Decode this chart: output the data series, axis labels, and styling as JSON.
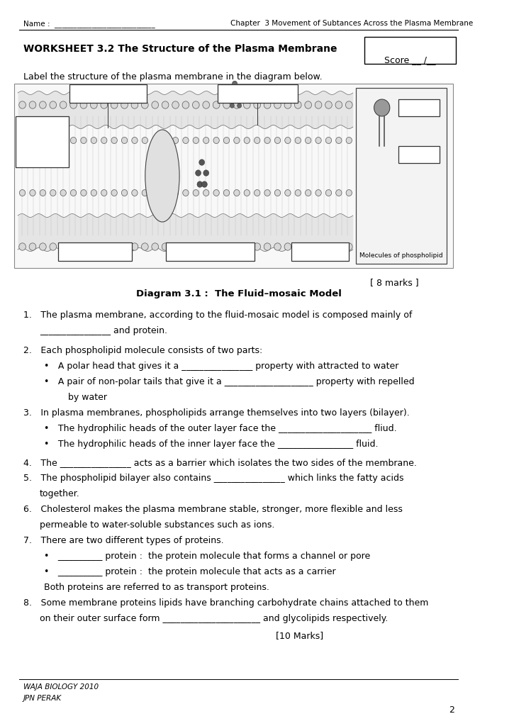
{
  "bg_color": "#ffffff",
  "header_name": "Name :  ___________________________",
  "header_chapter": "Chapter  3 Movement of Subtances Across the Plasma Membrane",
  "worksheet_title": "WORKSHEET 3.2 The Structure of the Plasma Membrane",
  "score_label": "Score __ /__",
  "label_instruction": "Label the structure of the plasma membrane in the diagram below.",
  "diagram_caption": "Diagram 3.1 :  The Fluid–mosaic Model",
  "marks_diagram": "[ 8 marks ]",
  "marks_questions": "[10 Marks]",
  "phospholipid_label": "Molecules of phospholipid",
  "footer_line1": "WAJA BIOLOGY 2010",
  "footer_line2": "JPN PERAK",
  "page_number": "2"
}
